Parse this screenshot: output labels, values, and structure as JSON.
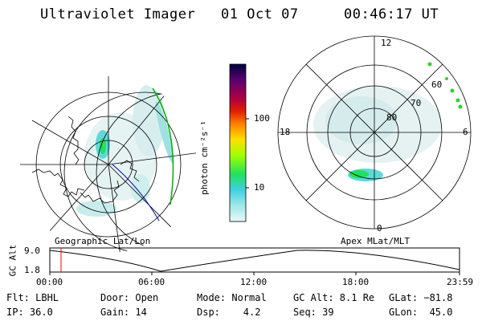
{
  "header": {
    "title": "Ultraviolet Imager",
    "date": "01 Oct 07",
    "time": "00:46:17 UT"
  },
  "left_panel": {
    "label": "Geographic Lat/Lon"
  },
  "right_panel": {
    "label": "Apex MLat/MLT",
    "mlt_labels": [
      "12",
      "18",
      "6",
      "0"
    ],
    "lat_labels": [
      "60",
      "70",
      "80"
    ]
  },
  "colorbar": {
    "unit": "photon cm⁻²s⁻¹",
    "ticks": [
      "100",
      "10"
    ],
    "colors": [
      "#000040",
      "#5a0070",
      "#b00040",
      "#e02000",
      "#ff8000",
      "#ffe000",
      "#a0ff00",
      "#20e060",
      "#40d0e0",
      "#a0e8e8",
      "#e8f8f8"
    ]
  },
  "altitude_plot": {
    "ylabel": "GC Alt",
    "ticks": [
      "9.0",
      "1.8"
    ],
    "time_ticks": [
      "00:00",
      "06:00",
      "12:00",
      "18:00",
      "23:59"
    ],
    "current_time_color": "#ff0000"
  },
  "info": {
    "filter": "Flt: LBHL",
    "door": "Door: Open",
    "mode": "Mode: Normal",
    "gc_alt": "GC Alt: 8.1 Re",
    "glat": "GLat: −81.8",
    "ip": "IP: 36.0",
    "gain": "Gain: 14",
    "dsp": "Dsp:    4.2",
    "seq": "Seq: 39",
    "glon": "GLon:  45.0"
  }
}
